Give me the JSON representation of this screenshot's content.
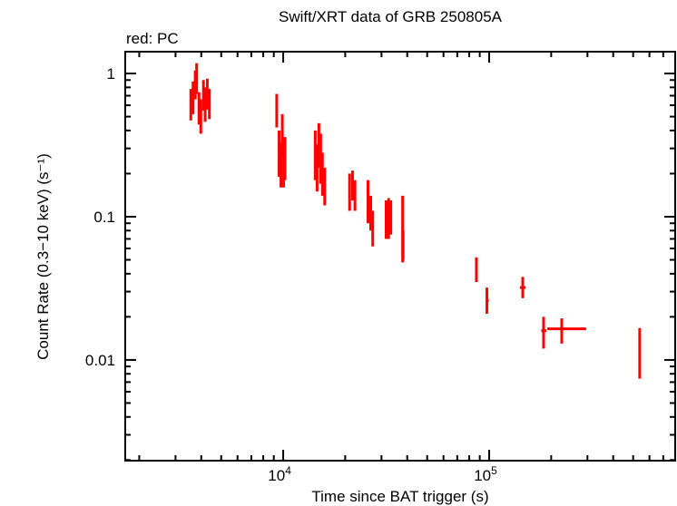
{
  "chart_data": {
    "type": "scatter",
    "title": "Swift/XRT data of GRB 250805A",
    "subtitle": "red: PC",
    "xlabel": "Time since BAT trigger (s)",
    "ylabel": "Count Rate (0.3−10 keV) (s⁻¹)",
    "xscale": "log",
    "yscale": "log",
    "xlim": [
      1710,
      800000
    ],
    "ylim": [
      0.00198,
      1.42
    ],
    "grid": false,
    "x_ticks": [
      {
        "value": 10000,
        "base": "10",
        "exp": "4"
      },
      {
        "value": 100000,
        "base": "10",
        "exp": "5"
      }
    ],
    "y_ticks": [
      {
        "value": 1,
        "label": "1"
      },
      {
        "value": 0.1,
        "label": "0.1"
      },
      {
        "value": 0.01,
        "label": "0.01"
      }
    ],
    "series": [
      {
        "name": "PC",
        "color": "#ff0000",
        "points": [
          {
            "x": 3560,
            "xlo": 3520,
            "xhi": 3600,
            "y": 0.62,
            "ylo": 0.47,
            "yhi": 0.78
          },
          {
            "x": 3650,
            "xlo": 3610,
            "xhi": 3690,
            "y": 0.7,
            "ylo": 0.52,
            "yhi": 0.88
          },
          {
            "x": 3740,
            "xlo": 3700,
            "xhi": 3780,
            "y": 0.85,
            "ylo": 0.66,
            "yhi": 1.05
          },
          {
            "x": 3800,
            "xlo": 3780,
            "xhi": 3830,
            "y": 0.95,
            "ylo": 0.72,
            "yhi": 1.18
          },
          {
            "x": 3900,
            "xlo": 3860,
            "xhi": 3940,
            "y": 0.58,
            "ylo": 0.44,
            "yhi": 0.74
          },
          {
            "x": 3980,
            "xlo": 3950,
            "xhi": 4010,
            "y": 0.52,
            "ylo": 0.38,
            "yhi": 0.66
          },
          {
            "x": 4100,
            "xlo": 4060,
            "xhi": 4140,
            "y": 0.72,
            "ylo": 0.55,
            "yhi": 0.9
          },
          {
            "x": 4180,
            "xlo": 4150,
            "xhi": 4210,
            "y": 0.62,
            "ylo": 0.46,
            "yhi": 0.8
          },
          {
            "x": 4280,
            "xlo": 4240,
            "xhi": 4320,
            "y": 0.75,
            "ylo": 0.56,
            "yhi": 0.92
          },
          {
            "x": 4380,
            "xlo": 4340,
            "xhi": 4420,
            "y": 0.63,
            "ylo": 0.48,
            "yhi": 0.78
          },
          {
            "x": 9300,
            "xlo": 9250,
            "xhi": 9400,
            "y": 0.55,
            "ylo": 0.42,
            "yhi": 0.72
          },
          {
            "x": 9550,
            "xlo": 9450,
            "xhi": 9650,
            "y": 0.29,
            "ylo": 0.19,
            "yhi": 0.4
          },
          {
            "x": 9750,
            "xlo": 9680,
            "xhi": 9820,
            "y": 0.24,
            "ylo": 0.16,
            "yhi": 0.33
          },
          {
            "x": 9900,
            "xlo": 9840,
            "xhi": 9960,
            "y": 0.38,
            "ylo": 0.26,
            "yhi": 0.52
          },
          {
            "x": 10050,
            "xlo": 9980,
            "xhi": 10120,
            "y": 0.22,
            "ylo": 0.16,
            "yhi": 0.3
          },
          {
            "x": 10200,
            "xlo": 10130,
            "xhi": 10300,
            "y": 0.27,
            "ylo": 0.18,
            "yhi": 0.36
          },
          {
            "x": 14300,
            "xlo": 14200,
            "xhi": 14400,
            "y": 0.28,
            "ylo": 0.18,
            "yhi": 0.4
          },
          {
            "x": 14600,
            "xlo": 14500,
            "xhi": 14700,
            "y": 0.22,
            "ylo": 0.15,
            "yhi": 0.32
          },
          {
            "x": 14900,
            "xlo": 14800,
            "xhi": 15000,
            "y": 0.33,
            "ylo": 0.22,
            "yhi": 0.45
          },
          {
            "x": 15200,
            "xlo": 15100,
            "xhi": 15300,
            "y": 0.26,
            "ylo": 0.17,
            "yhi": 0.38
          },
          {
            "x": 15500,
            "xlo": 15400,
            "xhi": 15600,
            "y": 0.2,
            "ylo": 0.14,
            "yhi": 0.28
          },
          {
            "x": 15900,
            "xlo": 15700,
            "xhi": 16100,
            "y": 0.17,
            "ylo": 0.12,
            "yhi": 0.22
          },
          {
            "x": 21000,
            "xlo": 20800,
            "xhi": 21200,
            "y": 0.15,
            "ylo": 0.11,
            "yhi": 0.2
          },
          {
            "x": 21700,
            "xlo": 21500,
            "xhi": 21900,
            "y": 0.17,
            "ylo": 0.13,
            "yhi": 0.21
          },
          {
            "x": 22300,
            "xlo": 22100,
            "xhi": 22500,
            "y": 0.14,
            "ylo": 0.11,
            "yhi": 0.18
          },
          {
            "x": 25800,
            "xlo": 25600,
            "xhi": 26000,
            "y": 0.13,
            "ylo": 0.09,
            "yhi": 0.18
          },
          {
            "x": 26600,
            "xlo": 26400,
            "xhi": 26800,
            "y": 0.11,
            "ylo": 0.08,
            "yhi": 0.14
          },
          {
            "x": 27200,
            "xlo": 27000,
            "xhi": 27400,
            "y": 0.085,
            "ylo": 0.062,
            "yhi": 0.11
          },
          {
            "x": 31600,
            "xlo": 31300,
            "xhi": 31900,
            "y": 0.09,
            "ylo": 0.07,
            "yhi": 0.13
          },
          {
            "x": 32500,
            "xlo": 32200,
            "xhi": 32800,
            "y": 0.095,
            "ylo": 0.07,
            "yhi": 0.135
          },
          {
            "x": 33300,
            "xlo": 33000,
            "xhi": 33600,
            "y": 0.1,
            "ylo": 0.075,
            "yhi": 0.13
          },
          {
            "x": 38000,
            "xlo": 37700,
            "xhi": 38300,
            "y": 0.09,
            "ylo": 0.048,
            "yhi": 0.14
          },
          {
            "x": 38200,
            "xlo": 37900,
            "xhi": 38600,
            "y": 0.065,
            "ylo": 0.05,
            "yhi": 0.08
          },
          {
            "x": 86700,
            "xlo": 86000,
            "xhi": 87400,
            "y": 0.043,
            "ylo": 0.035,
            "yhi": 0.052
          },
          {
            "x": 97500,
            "xlo": 96500,
            "xhi": 99500,
            "y": 0.026,
            "ylo": 0.021,
            "yhi": 0.032
          },
          {
            "x": 145500,
            "xlo": 141000,
            "xhi": 150000,
            "y": 0.032,
            "ylo": 0.027,
            "yhi": 0.038
          },
          {
            "x": 183700,
            "xlo": 179000,
            "xhi": 190000,
            "y": 0.016,
            "ylo": 0.012,
            "yhi": 0.02
          },
          {
            "x": 225000,
            "xlo": 191500,
            "xhi": 295600,
            "y": 0.0165,
            "ylo": 0.013,
            "yhi": 0.0195
          },
          {
            "x": 538000,
            "xlo": 534000,
            "xhi": 542000,
            "y": 0.011,
            "ylo": 0.0074,
            "yhi": 0.0167
          }
        ]
      }
    ]
  }
}
